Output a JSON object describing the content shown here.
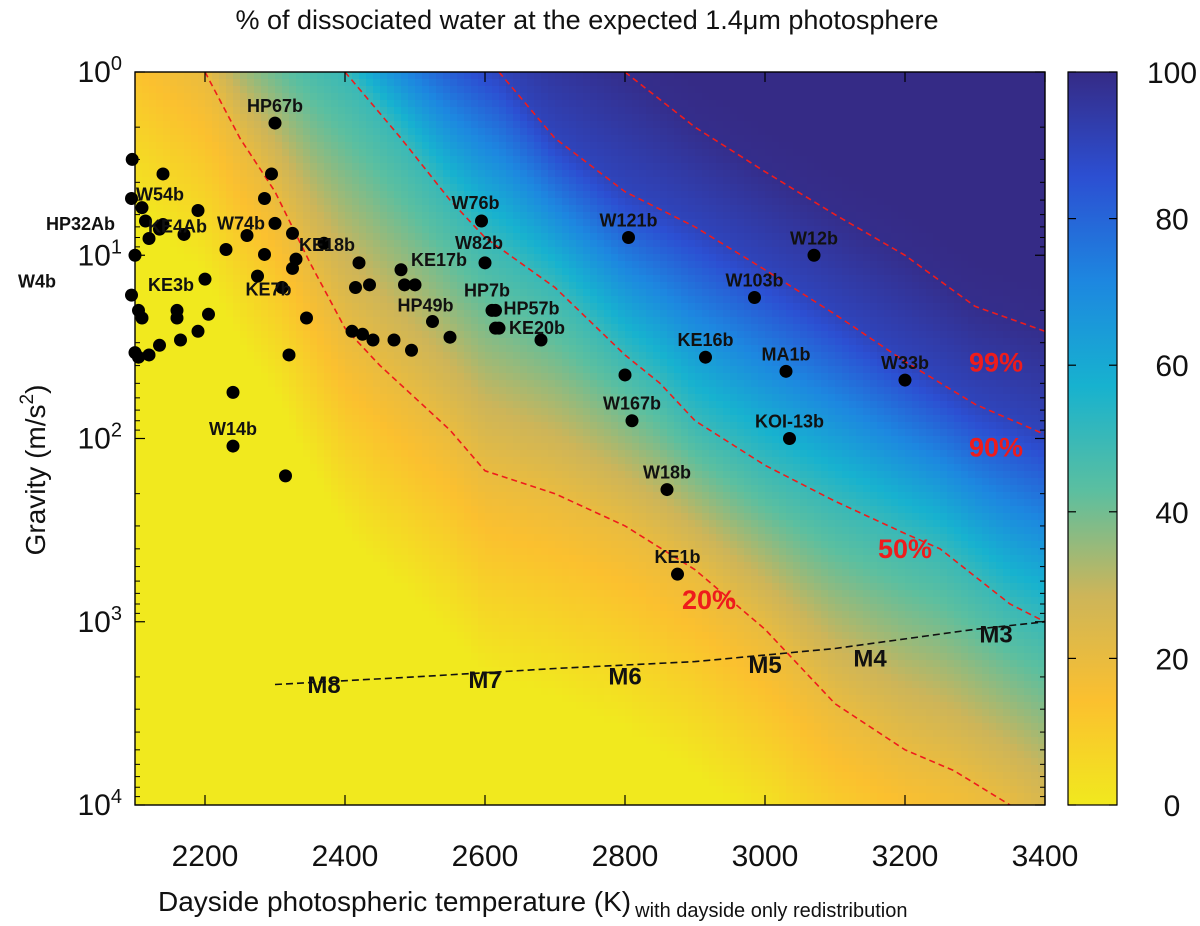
{
  "chart_data": {
    "type": "heatmap",
    "title": "% of dissociated water at the expected 1.4μm photosphere",
    "xlabel": "Dayside photospheric temperature (K)",
    "xlabel_sub": "with dayside only redistribution",
    "ylabel": "Gravity (m/s²)",
    "xlim": [
      2100,
      3400
    ],
    "ylim": [
      1,
      10000
    ],
    "yscale": "log",
    "x_ticks": [
      {
        "value": 2200,
        "label": "2200"
      },
      {
        "value": 2400,
        "label": "2400"
      },
      {
        "value": 2600,
        "label": "2600"
      },
      {
        "value": 2800,
        "label": "2800"
      },
      {
        "value": 3000,
        "label": "3000"
      },
      {
        "value": 3200,
        "label": "3200"
      },
      {
        "value": 3400,
        "label": "3400"
      }
    ],
    "y_ticks": [
      {
        "value": 1,
        "base": "10",
        "exp": "0"
      },
      {
        "value": 10,
        "base": "10",
        "exp": "1"
      },
      {
        "value": 100,
        "base": "10",
        "exp": "2"
      },
      {
        "value": 1000,
        "base": "10",
        "exp": "3"
      },
      {
        "value": 10000,
        "base": "10",
        "exp": "4"
      }
    ],
    "colorbar": {
      "range": [
        0,
        100
      ],
      "ticks": [
        {
          "value": 0,
          "label": "0"
        },
        {
          "value": 20,
          "label": "20"
        },
        {
          "value": 40,
          "label": "40"
        },
        {
          "value": 60,
          "label": "60"
        },
        {
          "value": 80,
          "label": "80"
        },
        {
          "value": 100,
          "label": "100"
        }
      ],
      "colors": [
        "#f1e91e",
        "#fbc02f",
        "#cdb559",
        "#5bbfa0",
        "#17b2cf",
        "#1d87e0",
        "#2c4fd2",
        "#352b86"
      ]
    },
    "contours": [
      {
        "label": "20%",
        "color": "#ee1c1c",
        "label_x": 2920,
        "label_y": 850,
        "points": [
          [
            2200,
            1
          ],
          [
            2250,
            2.3
          ],
          [
            2300,
            4.5
          ],
          [
            2350,
            11
          ],
          [
            2400,
            25
          ],
          [
            2450,
            40
          ],
          [
            2500,
            60
          ],
          [
            2550,
            90
          ],
          [
            2600,
            150
          ],
          [
            2700,
            200
          ],
          [
            2800,
            300
          ],
          [
            2900,
            520
          ],
          [
            3000,
            1100
          ],
          [
            3100,
            2800
          ],
          [
            3200,
            5000
          ],
          [
            3270,
            6500
          ],
          [
            3350,
            10000
          ]
        ]
      },
      {
        "label": "50%",
        "color": "#ee1c1c",
        "label_x": 3200,
        "label_y": 450,
        "points": [
          [
            2400,
            1
          ],
          [
            2480,
            2.3
          ],
          [
            2550,
            5
          ],
          [
            2600,
            8
          ],
          [
            2700,
            15
          ],
          [
            2800,
            35
          ],
          [
            2850,
            50
          ],
          [
            2900,
            80
          ],
          [
            3000,
            140
          ],
          [
            3100,
            220
          ],
          [
            3200,
            330
          ],
          [
            3250,
            400
          ],
          [
            3350,
            800
          ],
          [
            3400,
            1000
          ]
        ]
      },
      {
        "label": "90%",
        "color": "#ee1c1c",
        "label_x": 3330,
        "label_y": 125,
        "points": [
          [
            2620,
            1
          ],
          [
            2700,
            2.3
          ],
          [
            2800,
            4.5
          ],
          [
            2900,
            7
          ],
          [
            3000,
            12
          ],
          [
            3100,
            21
          ],
          [
            3200,
            38
          ],
          [
            3300,
            65
          ],
          [
            3400,
            95
          ]
        ]
      },
      {
        "label": "99%",
        "color": "#ee1c1c",
        "label_x": 3330,
        "label_y": 43,
        "points": [
          [
            2800,
            1
          ],
          [
            2900,
            2
          ],
          [
            3000,
            3.5
          ],
          [
            3100,
            6
          ],
          [
            3200,
            10
          ],
          [
            3300,
            19
          ],
          [
            3400,
            26
          ]
        ]
      }
    ],
    "spectral_line": {
      "color": "#111111",
      "points": [
        [
          2300,
          2200
        ],
        [
          2500,
          2000
        ],
        [
          2700,
          1800
        ],
        [
          2900,
          1650
        ],
        [
          3100,
          1400
        ],
        [
          3300,
          1100
        ],
        [
          3400,
          1000
        ]
      ]
    },
    "spectral_labels": [
      {
        "text": "M8",
        "x": 2370,
        "y": 2450
      },
      {
        "text": "M7",
        "x": 2600,
        "y": 2300
      },
      {
        "text": "M6",
        "x": 2800,
        "y": 2200
      },
      {
        "text": "M5",
        "x": 3000,
        "y": 1900
      },
      {
        "text": "M4",
        "x": 3150,
        "y": 1750
      },
      {
        "text": "M3",
        "x": 3330,
        "y": 1300
      }
    ],
    "points": [
      {
        "x": 2300,
        "y": 1.9,
        "label": "HP67b"
      },
      {
        "x": 2096,
        "y": 3.0
      },
      {
        "x": 2140,
        "y": 3.6
      },
      {
        "x": 2095,
        "y": 4.9,
        "label": "W54b"
      },
      {
        "x": 2110,
        "y": 5.5
      },
      {
        "x": 2115,
        "y": 6.5,
        "label": "HP32Ab"
      },
      {
        "x": 2140,
        "y": 6.8,
        "label": "KE4Ab"
      },
      {
        "x": 2170,
        "y": 7.7
      },
      {
        "x": 2120,
        "y": 8.1
      },
      {
        "x": 2190,
        "y": 5.7
      },
      {
        "x": 2135,
        "y": 7.2
      },
      {
        "x": 2100,
        "y": 10,
        "label": "W4b"
      },
      {
        "x": 2200,
        "y": 13.5
      },
      {
        "x": 2095,
        "y": 16.5,
        "label": "KE3b"
      },
      {
        "x": 2105,
        "y": 20
      },
      {
        "x": 2110,
        "y": 22
      },
      {
        "x": 2160,
        "y": 20
      },
      {
        "x": 2160,
        "y": 22
      },
      {
        "x": 2205,
        "y": 21
      },
      {
        "x": 2190,
        "y": 26
      },
      {
        "x": 2165,
        "y": 29
      },
      {
        "x": 2135,
        "y": 31
      },
      {
        "x": 2120,
        "y": 35
      },
      {
        "x": 2100,
        "y": 34
      },
      {
        "x": 2105,
        "y": 36
      },
      {
        "x": 2240,
        "y": 56
      },
      {
        "x": 2240,
        "y": 110,
        "label": "W14b"
      },
      {
        "x": 2295,
        "y": 3.6
      },
      {
        "x": 2285,
        "y": 4.9
      },
      {
        "x": 2300,
        "y": 6.7
      },
      {
        "x": 2260,
        "y": 7.8,
        "label": "W74b"
      },
      {
        "x": 2230,
        "y": 9.3
      },
      {
        "x": 2285,
        "y": 9.9
      },
      {
        "x": 2325,
        "y": 7.6
      },
      {
        "x": 2330,
        "y": 10.5
      },
      {
        "x": 2275,
        "y": 13
      },
      {
        "x": 2310,
        "y": 15
      },
      {
        "x": 2325,
        "y": 11.8
      },
      {
        "x": 2370,
        "y": 8.6
      },
      {
        "x": 2345,
        "y": 22
      },
      {
        "x": 2320,
        "y": 35
      },
      {
        "x": 2315,
        "y": 160
      },
      {
        "x": 2415,
        "y": 15,
        "label": "KE7b"
      },
      {
        "x": 2420,
        "y": 11,
        "label": "KE18b"
      },
      {
        "x": 2435,
        "y": 14.5
      },
      {
        "x": 2410,
        "y": 26
      },
      {
        "x": 2425,
        "y": 27
      },
      {
        "x": 2440,
        "y": 29
      },
      {
        "x": 2470,
        "y": 29
      },
      {
        "x": 2495,
        "y": 33
      },
      {
        "x": 2480,
        "y": 12,
        "label": "KE17b"
      },
      {
        "x": 2485,
        "y": 14.5
      },
      {
        "x": 2500,
        "y": 14.5
      },
      {
        "x": 2525,
        "y": 23,
        "label": "HP49b"
      },
      {
        "x": 2550,
        "y": 28
      },
      {
        "x": 2595,
        "y": 6.5,
        "label": "W76b"
      },
      {
        "x": 2600,
        "y": 11,
        "label": "W82b"
      },
      {
        "x": 2610,
        "y": 20,
        "label": "HP7b"
      },
      {
        "x": 2615,
        "y": 20,
        "label": "HP57b"
      },
      {
        "x": 2620,
        "y": 25,
        "label": "KE20b"
      },
      {
        "x": 2615,
        "y": 25
      },
      {
        "x": 2680,
        "y": 29
      },
      {
        "x": 2805,
        "y": 8,
        "label": "W121b"
      },
      {
        "x": 2800,
        "y": 45
      },
      {
        "x": 2810,
        "y": 80,
        "label": "W167b"
      },
      {
        "x": 2860,
        "y": 190,
        "label": "W18b"
      },
      {
        "x": 2875,
        "y": 550,
        "label": "KE1b"
      },
      {
        "x": 2915,
        "y": 36,
        "label": "KE16b"
      },
      {
        "x": 2985,
        "y": 17,
        "label": "W103b"
      },
      {
        "x": 3030,
        "y": 43,
        "label": "MA1b"
      },
      {
        "x": 3035,
        "y": 100,
        "label": "KOI-13b"
      },
      {
        "x": 3070,
        "y": 10,
        "label": "W12b"
      },
      {
        "x": 3200,
        "y": 48,
        "label": "W33b"
      }
    ]
  }
}
